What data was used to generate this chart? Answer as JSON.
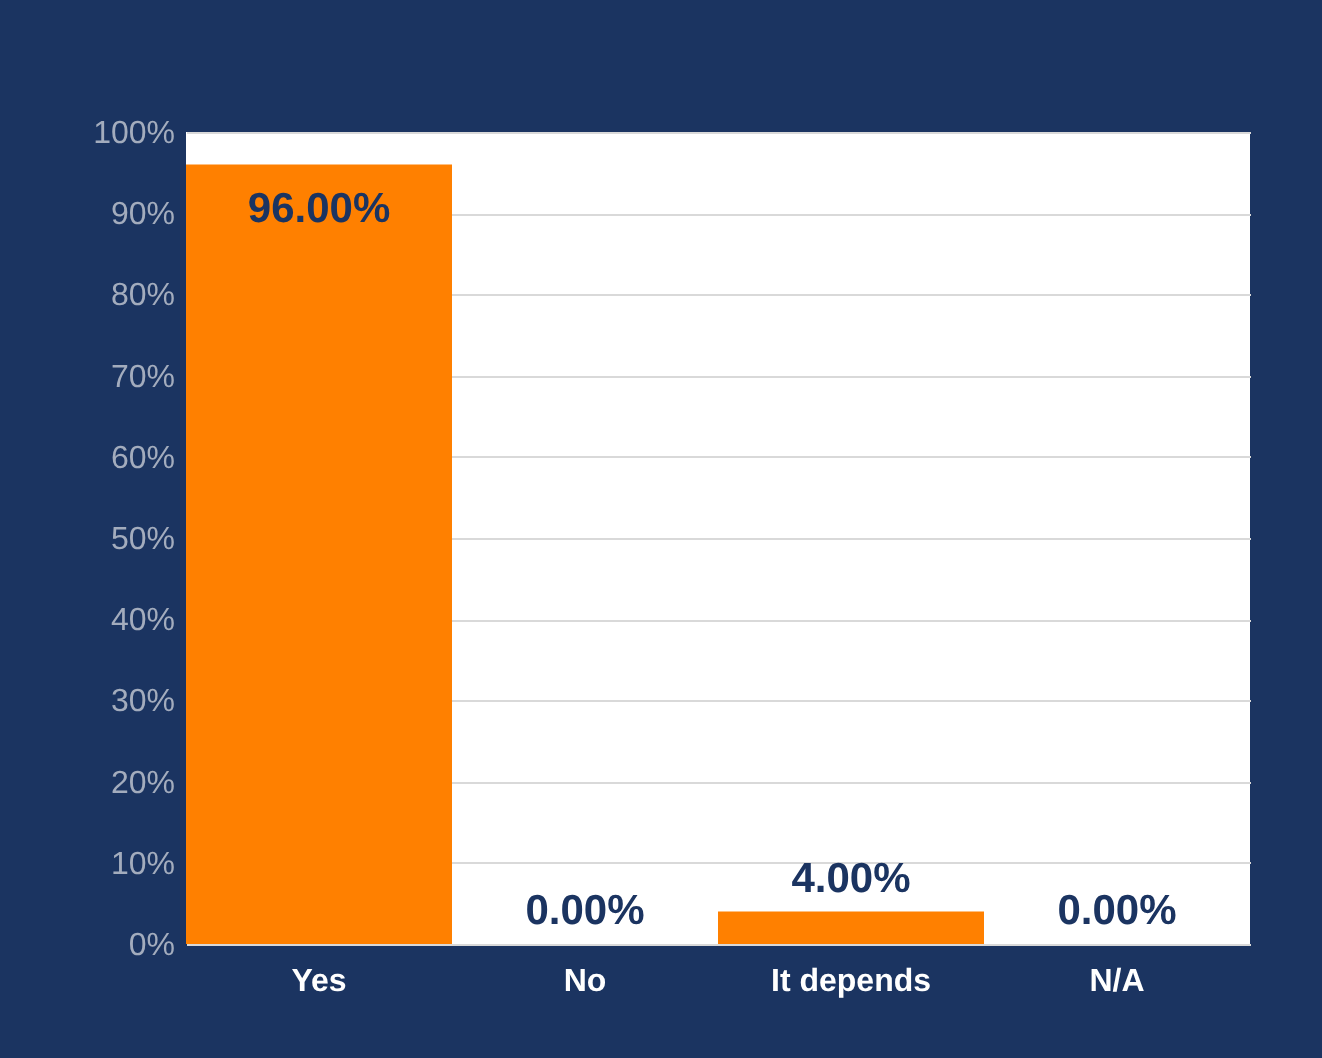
{
  "chart_data": {
    "type": "bar",
    "categories": [
      "Yes",
      "No",
      "It depends",
      "N/A"
    ],
    "values": [
      96,
      0,
      4,
      0
    ],
    "value_labels": [
      "96.00%",
      "0.00%",
      "4.00%",
      "0.00%"
    ],
    "color": "#ff8000",
    "ylim": [
      0,
      100
    ],
    "yticks": [
      {
        "value": 0,
        "label": "0%"
      },
      {
        "value": 10,
        "label": "10%"
      },
      {
        "value": 20,
        "label": "20%"
      },
      {
        "value": 30,
        "label": "30%"
      },
      {
        "value": 40,
        "label": "40%"
      },
      {
        "value": 50,
        "label": "50%"
      },
      {
        "value": 60,
        "label": "60%"
      },
      {
        "value": 70,
        "label": "70%"
      },
      {
        "value": 80,
        "label": "80%"
      },
      {
        "value": 90,
        "label": "90%"
      },
      {
        "value": 100,
        "label": "100%"
      }
    ],
    "grid": "y"
  }
}
